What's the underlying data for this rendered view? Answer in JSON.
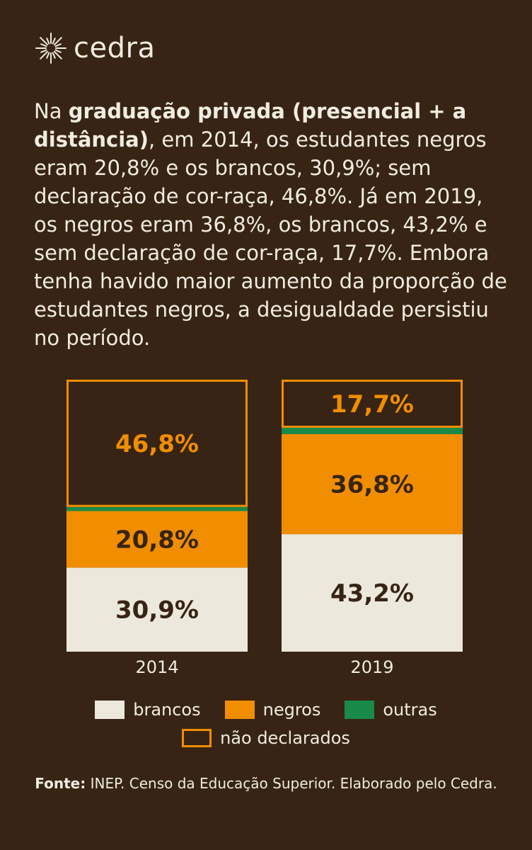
{
  "brand": {
    "name": "cedra",
    "icon": "sun-burst-icon"
  },
  "intro": {
    "lead": "Na ",
    "bold": "graduação privada (presencial + a distância)",
    "rest": ", em 2014, os estudantes negros eram 20,8% e os brancos, 30,9%; sem declaração de cor-raça, 46,8%. Já em 2019, os negros eram 36,8%, os brancos, 43,2% e sem declaração de cor-raça, 17,7%. Embora tenha havido maior aumento da proporção de estudantes negros, a desigualdade persistiu no período."
  },
  "colors": {
    "background": "#372414",
    "brancos": "#ece8dc",
    "negros": "#f18e00",
    "outras": "#1a8a4a",
    "nao_declarados": "#f18e00",
    "text_light": "#f0ece0",
    "text_dark": "#372414"
  },
  "chart_data": {
    "type": "bar",
    "stacked": true,
    "categories": [
      "2014",
      "2019"
    ],
    "series": [
      {
        "name": "brancos",
        "key": "brancos",
        "values": [
          30.9,
          43.2
        ],
        "labels": [
          "30,9%",
          "43,2%"
        ]
      },
      {
        "name": "negros",
        "key": "negros",
        "values": [
          20.8,
          36.8
        ],
        "labels": [
          "20,8%",
          "36,8%"
        ]
      },
      {
        "name": "outras",
        "key": "outras",
        "values": [
          1.5,
          2.3
        ],
        "labels": [
          "",
          ""
        ]
      },
      {
        "name": "não declarados",
        "key": "nao_declarados",
        "values": [
          46.8,
          17.7
        ],
        "labels": [
          "46,8%",
          "17,7%"
        ],
        "outlined": true
      }
    ],
    "ylim": [
      0,
      100
    ],
    "legend": [
      "brancos",
      "negros",
      "outras",
      "não declarados"
    ],
    "legend_placement": "bottom"
  },
  "legend": {
    "brancos": "brancos",
    "negros": "negros",
    "outras": "outras",
    "nao_declarados": "não declarados"
  },
  "source": {
    "label": "Fonte:",
    "text": " INEP. Censo da Educação Superior. Elaborado pelo Cedra."
  }
}
